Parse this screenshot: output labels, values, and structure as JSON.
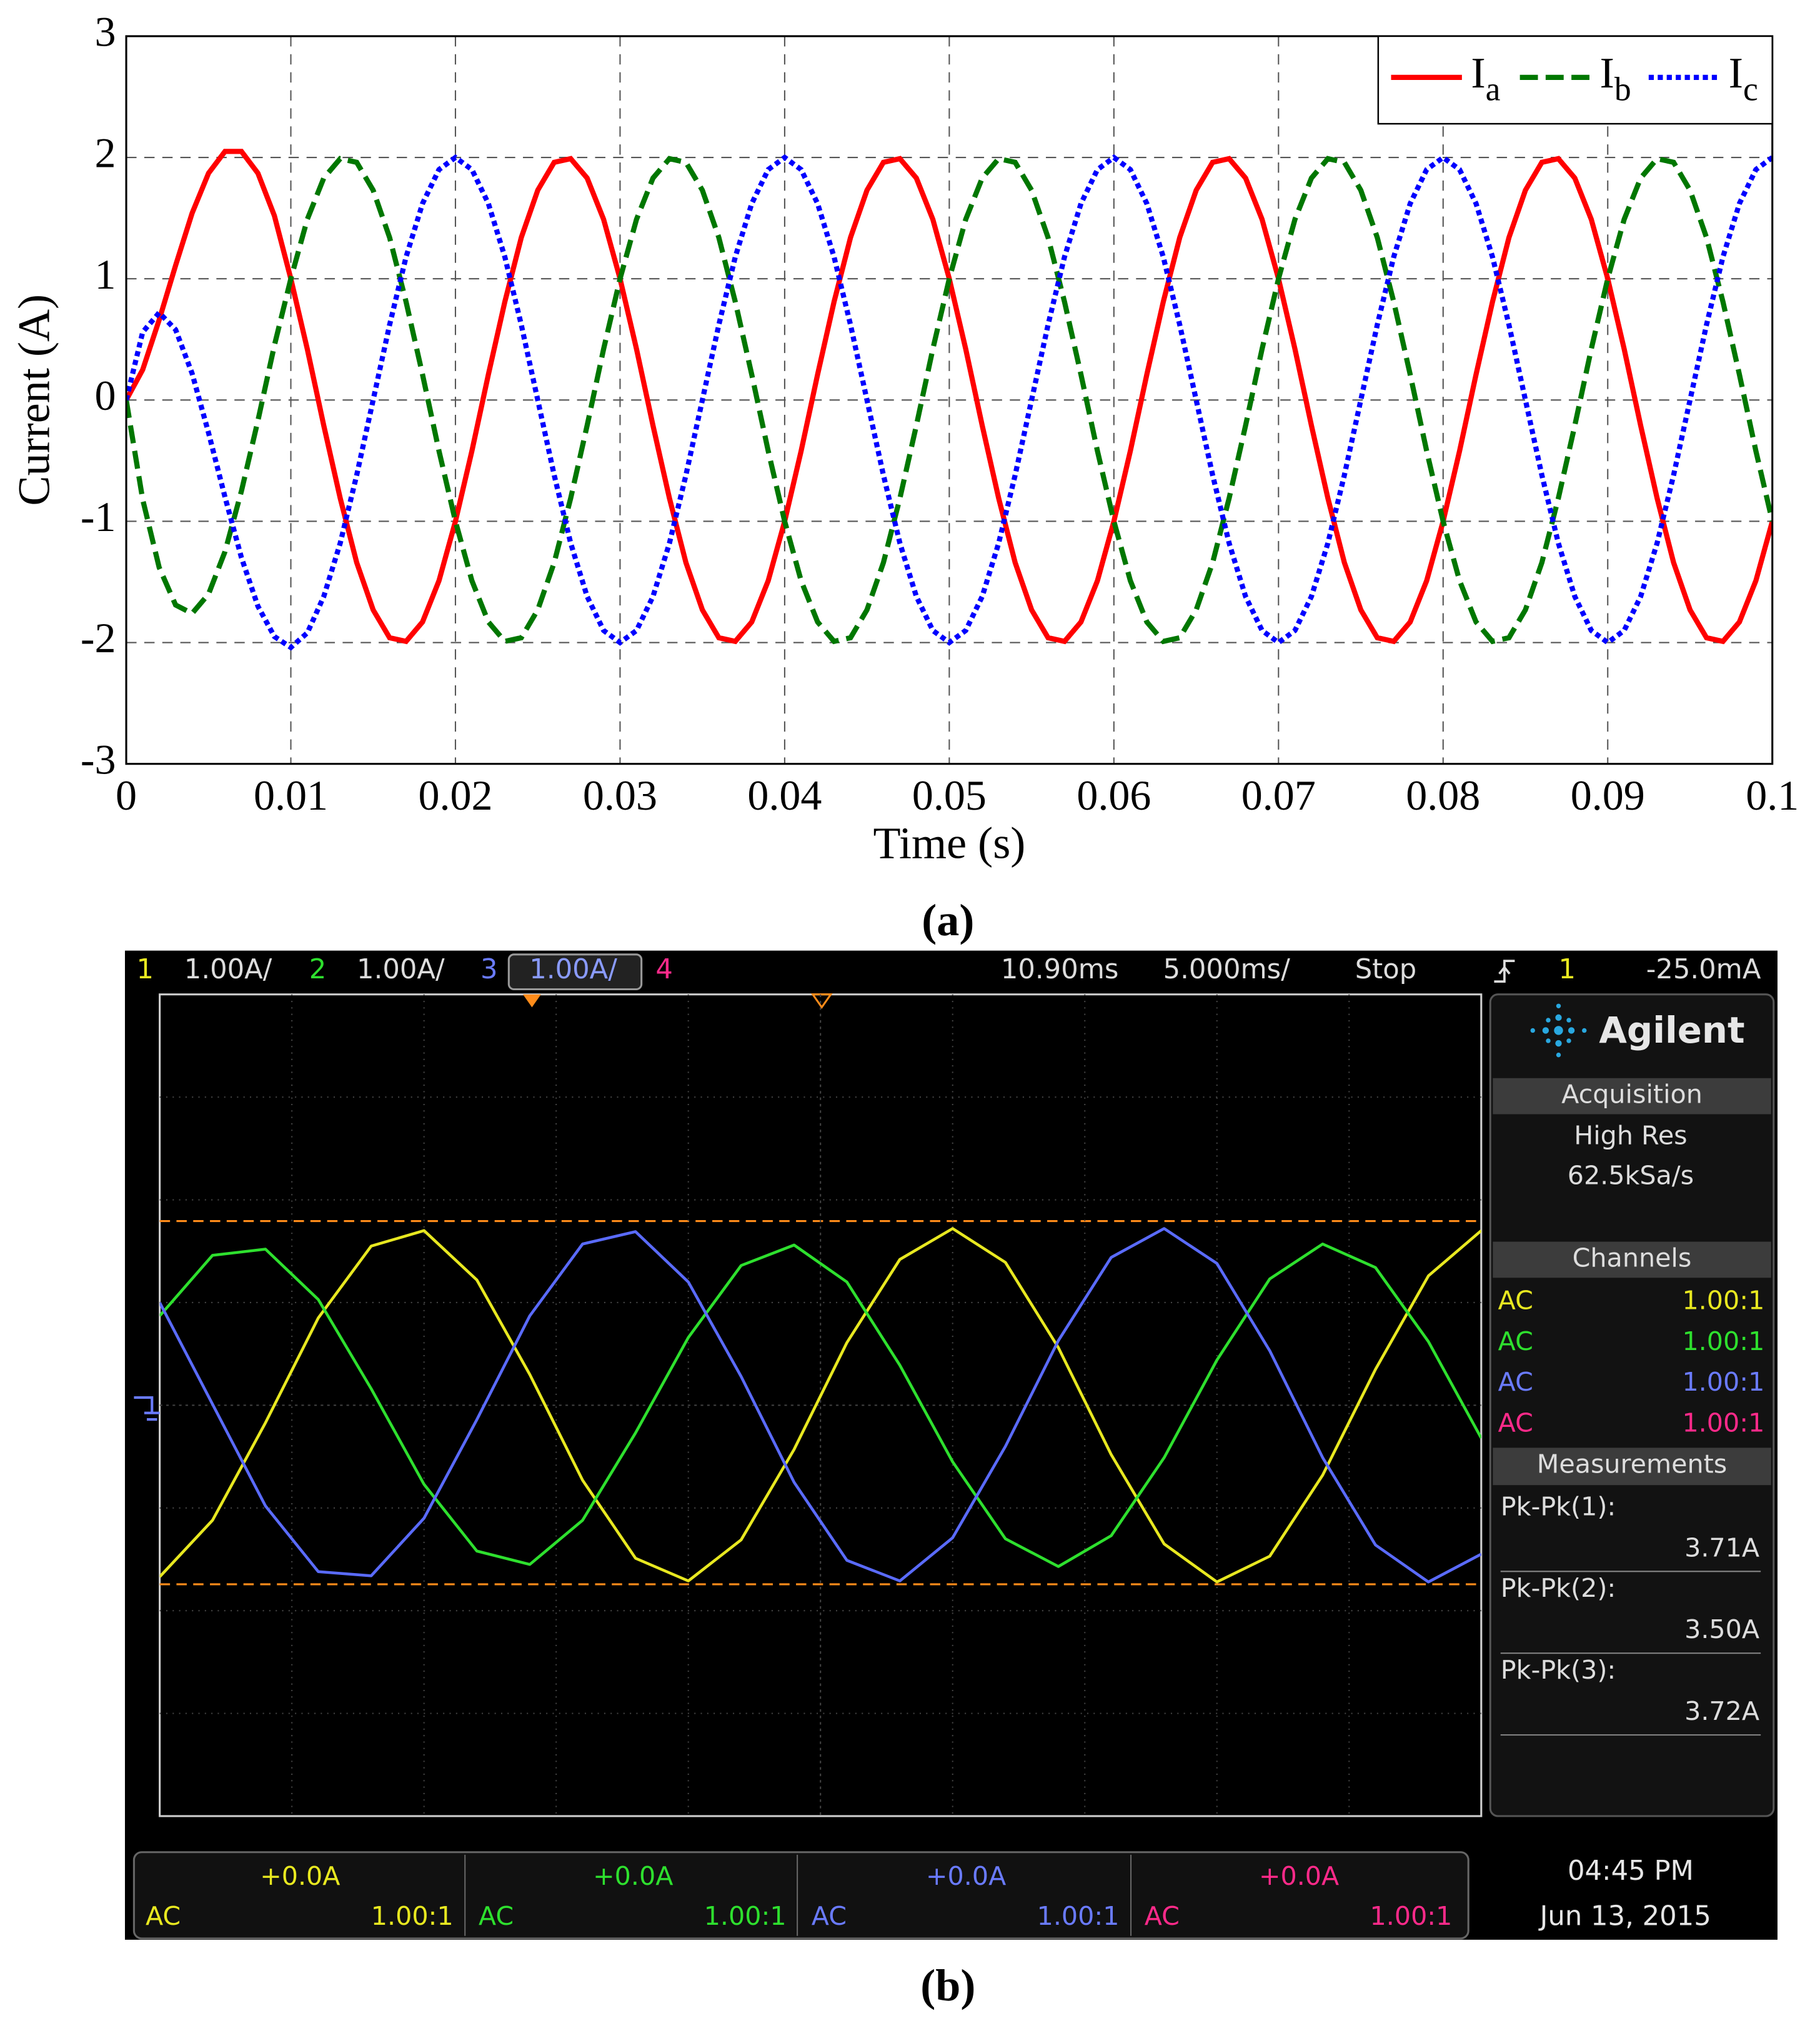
{
  "chart_data": {
    "type": "line",
    "xlabel": "Time (s)",
    "ylabel": "Current (A)",
    "x": [
      0,
      0.001,
      0.002,
      0.003,
      0.004,
      0.005,
      0.006,
      0.007,
      0.008,
      0.009,
      0.01,
      0.011,
      0.012,
      0.013,
      0.014,
      0.015,
      0.016,
      0.017,
      0.018,
      0.019,
      0.02,
      0.021,
      0.022,
      0.023,
      0.024,
      0.025,
      0.026,
      0.027,
      0.028,
      0.029,
      0.03,
      0.031,
      0.032,
      0.033,
      0.034,
      0.035,
      0.036,
      0.037,
      0.038,
      0.039,
      0.04,
      0.041,
      0.042,
      0.043,
      0.044,
      0.045,
      0.046,
      0.047,
      0.048,
      0.049,
      0.05,
      0.051,
      0.052,
      0.053,
      0.054,
      0.055,
      0.056,
      0.057,
      0.058,
      0.059,
      0.06,
      0.061,
      0.062,
      0.063,
      0.064,
      0.065,
      0.066,
      0.067,
      0.068,
      0.069,
      0.07,
      0.071,
      0.072,
      0.073,
      0.074,
      0.075,
      0.076,
      0.077,
      0.078,
      0.079,
      0.08,
      0.081,
      0.082,
      0.083,
      0.084,
      0.085,
      0.086,
      0.087,
      0.088,
      0.089,
      0.09,
      0.091,
      0.092,
      0.093,
      0.094,
      0.095,
      0.096,
      0.097,
      0.098,
      0.099,
      0.1
    ],
    "series": [
      {
        "name": "Ia",
        "color": "#ff0000",
        "line_style": "solid",
        "values": [
          0,
          0.25,
          0.66,
          1.11,
          1.54,
          1.87,
          2.05,
          2.05,
          1.87,
          1.52,
          1,
          0.42,
          -0.21,
          -0.81,
          -1.34,
          -1.73,
          -1.96,
          -1.99,
          -1.83,
          -1.49,
          -1,
          -0.42,
          0.21,
          0.81,
          1.34,
          1.73,
          1.96,
          1.99,
          1.83,
          1.49,
          1,
          0.42,
          -0.21,
          -0.81,
          -1.34,
          -1.73,
          -1.96,
          -1.99,
          -1.83,
          -1.49,
          -1,
          -0.42,
          0.21,
          0.81,
          1.34,
          1.73,
          1.96,
          1.99,
          1.83,
          1.49,
          1,
          0.42,
          -0.21,
          -0.81,
          -1.34,
          -1.73,
          -1.96,
          -1.99,
          -1.83,
          -1.49,
          -1,
          -0.42,
          0.21,
          0.81,
          1.34,
          1.73,
          1.96,
          1.99,
          1.83,
          1.49,
          1,
          0.42,
          -0.21,
          -0.81,
          -1.34,
          -1.73,
          -1.96,
          -1.99,
          -1.83,
          -1.49,
          -1,
          -0.42,
          0.21,
          0.81,
          1.34,
          1.73,
          1.96,
          1.99,
          1.83,
          1.49,
          1,
          0.42,
          -0.21,
          -0.81,
          -1.34,
          -1.73,
          -1.96,
          -1.99,
          -1.83,
          -1.49,
          -1
        ]
      },
      {
        "name": "Ib",
        "color": "#007700",
        "line_style": "dashed",
        "values": [
          0,
          -0.82,
          -1.38,
          -1.69,
          -1.76,
          -1.6,
          -1.25,
          -0.75,
          -0.17,
          0.45,
          1,
          1.49,
          1.83,
          1.99,
          1.96,
          1.73,
          1.34,
          0.81,
          0.21,
          -0.42,
          -1,
          -1.49,
          -1.83,
          -1.99,
          -1.96,
          -1.73,
          -1.34,
          -0.81,
          -0.21,
          0.42,
          1,
          1.49,
          1.83,
          1.99,
          1.96,
          1.73,
          1.34,
          0.81,
          0.21,
          -0.42,
          -1,
          -1.49,
          -1.83,
          -1.99,
          -1.96,
          -1.73,
          -1.34,
          -0.81,
          -0.21,
          0.42,
          1,
          1.49,
          1.83,
          1.99,
          1.96,
          1.73,
          1.34,
          0.81,
          0.21,
          -0.42,
          -1,
          -1.49,
          -1.83,
          -1.99,
          -1.96,
          -1.73,
          -1.34,
          -0.81,
          -0.21,
          0.42,
          1,
          1.49,
          1.83,
          1.99,
          1.96,
          1.73,
          1.34,
          0.81,
          0.21,
          -0.42,
          -1,
          -1.49,
          -1.83,
          -1.99,
          -1.96,
          -1.73,
          -1.34,
          -0.81,
          -0.21,
          0.42,
          1,
          1.49,
          1.83,
          1.99,
          1.96,
          1.73,
          1.34,
          0.81,
          0.21,
          -0.42,
          -1
        ]
      },
      {
        "name": "Ic",
        "color": "#0000ff",
        "line_style": "dotted",
        "values": [
          0,
          0.56,
          0.72,
          0.58,
          0.22,
          -0.27,
          -0.8,
          -1.3,
          -1.7,
          -1.95,
          -2.04,
          -1.92,
          -1.62,
          -1.18,
          -0.62,
          0,
          0.62,
          1.18,
          1.62,
          1.9,
          2,
          1.9,
          1.62,
          1.18,
          0.62,
          0,
          -0.62,
          -1.18,
          -1.62,
          -1.9,
          -2,
          -1.9,
          -1.62,
          -1.18,
          -0.62,
          0,
          0.62,
          1.18,
          1.62,
          1.9,
          2,
          1.9,
          1.62,
          1.18,
          0.62,
          0,
          -0.62,
          -1.18,
          -1.62,
          -1.9,
          -2,
          -1.9,
          -1.62,
          -1.18,
          -0.62,
          0,
          0.62,
          1.18,
          1.62,
          1.9,
          2,
          1.9,
          1.62,
          1.18,
          0.62,
          0,
          -0.62,
          -1.18,
          -1.62,
          -1.9,
          -2,
          -1.9,
          -1.62,
          -1.18,
          -0.62,
          0,
          0.62,
          1.18,
          1.62,
          1.9,
          2,
          1.9,
          1.62,
          1.18,
          0.62,
          0,
          -0.62,
          -1.18,
          -1.62,
          -1.9,
          -2,
          -1.9,
          -1.62,
          -1.18,
          -0.62,
          0,
          0.62,
          1.18,
          1.62,
          1.9,
          2
        ]
      }
    ],
    "xlim": [
      0,
      0.1
    ],
    "xticks": [
      0,
      0.01,
      0.02,
      0.03,
      0.04,
      0.05,
      0.06,
      0.07,
      0.08,
      0.09,
      0.1
    ],
    "ylim": [
      -3,
      3
    ],
    "yticks": [
      -3,
      -2,
      -1,
      0,
      1,
      2,
      3
    ],
    "grid": true,
    "legend": "upper right"
  },
  "captions": {
    "a": "(a)",
    "b": "(b)"
  },
  "scope": {
    "header": [
      {
        "text": "1",
        "color": "#e8e820"
      },
      {
        "text": "1.00A/",
        "color": "#dddddd"
      },
      {
        "text": "2",
        "color": "#2ee02e"
      },
      {
        "text": "1.00A/",
        "color": "#dddddd"
      },
      {
        "text": "3",
        "color": "#6a7bff"
      },
      {
        "text": "1.00A/",
        "color": "#8a9bff"
      },
      {
        "text": "4",
        "color": "#ff2a8a"
      },
      {
        "text": "10.90ms",
        "color": "#dddddd"
      },
      {
        "text": "5.000ms/",
        "color": "#dddddd"
      },
      {
        "text": "Stop",
        "color": "#dddddd"
      },
      {
        "text": "1",
        "color": "#e8e820"
      },
      {
        "text": "-25.0mA",
        "color": "#dddddd"
      }
    ],
    "brand": "Agilent",
    "acquisition": {
      "title": "Acquisition",
      "mode": "High Res",
      "rate": "62.5kSa/s"
    },
    "channels": {
      "title": "Channels",
      "rows": [
        {
          "coupling": "AC",
          "probe": "1.00:1",
          "color": "#e8e820"
        },
        {
          "coupling": "AC",
          "probe": "1.00:1",
          "color": "#2ee02e"
        },
        {
          "coupling": "AC",
          "probe": "1.00:1",
          "color": "#6a7bff"
        },
        {
          "coupling": "AC",
          "probe": "1.00:1",
          "color": "#ff2a8a"
        }
      ]
    },
    "measurements": {
      "title": "Measurements",
      "items": [
        {
          "label": "Pk-Pk(1):",
          "value": "3.71A"
        },
        {
          "label": "Pk-Pk(2):",
          "value": "3.50A"
        },
        {
          "label": "Pk-Pk(3):",
          "value": "3.72A"
        }
      ]
    },
    "footer": [
      {
        "offset": "+0.0A",
        "coupling": "AC",
        "probe": "1.00:1",
        "color": "#e8e820"
      },
      {
        "offset": "+0.0A",
        "coupling": "AC",
        "probe": "1.00:1",
        "color": "#2ee02e"
      },
      {
        "offset": "+0.0A",
        "coupling": "AC",
        "probe": "1.00:1",
        "color": "#6a7bff"
      },
      {
        "offset": "+0.0A",
        "coupling": "AC",
        "probe": "1.00:1",
        "color": "#ff2a8a"
      }
    ],
    "time": "04:45 PM",
    "date": "Jun 13, 2015",
    "traces": {
      "xlim": [
        0,
        50
      ],
      "ylim": [
        -4,
        4
      ],
      "x": [
        0,
        2,
        4,
        6,
        8,
        10,
        12,
        14,
        16,
        18,
        20,
        22,
        24,
        26,
        28,
        30,
        32,
        34,
        36,
        38,
        40,
        42,
        44,
        46,
        48,
        50
      ],
      "series": [
        {
          "color": "#e8e820",
          "values": [
            -1.67,
            -1.12,
            -0.17,
            0.85,
            1.55,
            1.7,
            1.22,
            0.3,
            -0.73,
            -1.49,
            -1.71,
            -1.31,
            -0.43,
            0.61,
            1.42,
            1.72,
            1.39,
            0.56,
            -0.48,
            -1.35,
            -1.72,
            -1.47,
            -0.68,
            0.35,
            1.26,
            1.7
          ]
        },
        {
          "color": "#2ee02e",
          "values": [
            0.87,
            1.46,
            1.52,
            1.03,
            0.16,
            -0.77,
            -1.42,
            -1.55,
            -1.12,
            -0.27,
            0.66,
            1.36,
            1.56,
            1.2,
            0.39,
            -0.55,
            -1.3,
            -1.57,
            -1.27,
            -0.51,
            0.44,
            1.23,
            1.57,
            1.34,
            0.62,
            -0.32
          ]
        },
        {
          "color": "#5a6bff",
          "values": [
            1,
            0.01,
            -0.98,
            -1.62,
            -1.66,
            -1.1,
            -0.14,
            0.87,
            1.57,
            1.69,
            1.2,
            0.28,
            -0.75,
            -1.51,
            -1.71,
            -1.29,
            -0.4,
            0.63,
            1.44,
            1.72,
            1.38,
            0.53,
            -0.51,
            -1.36,
            -1.72,
            -1.45
          ]
        }
      ]
    }
  }
}
